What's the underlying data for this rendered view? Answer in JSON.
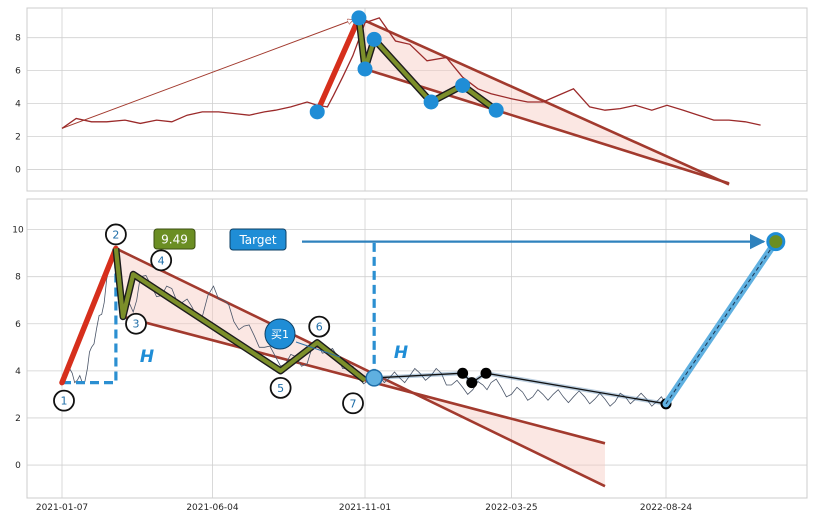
{
  "chart_data": [
    {
      "type": "line",
      "panel": "top",
      "title": "",
      "xlabel": "",
      "ylabel": "",
      "ylim": [
        -1.3,
        9.8
      ],
      "y_ticks": [
        0,
        2,
        4,
        6,
        8
      ],
      "grid": true,
      "price_series": {
        "color": "#9b2a2a",
        "x": [
          "2021-01-07",
          "2021-01-21",
          "2021-02-05",
          "2021-02-20",
          "2021-03-10",
          "2021-03-25",
          "2021-04-10",
          "2021-04-25",
          "2021-05-10",
          "2021-05-25",
          "2021-06-10",
          "2021-06-25",
          "2021-07-10",
          "2021-07-25",
          "2021-08-05",
          "2021-08-20",
          "2021-09-05",
          "2021-09-15",
          "2021-09-25",
          "2021-10-01",
          "2021-10-10",
          "2021-10-20",
          "2021-11-01",
          "2021-11-15",
          "2021-12-01",
          "2021-12-15",
          "2022-01-01",
          "2022-01-20",
          "2022-02-05",
          "2022-02-20",
          "2022-03-05",
          "2022-03-25",
          "2022-04-10",
          "2022-04-25",
          "2022-05-10",
          "2022-05-25",
          "2022-06-10",
          "2022-06-25",
          "2022-07-10",
          "2022-07-25",
          "2022-08-10",
          "2022-08-25",
          "2022-09-10",
          "2022-09-25",
          "2022-10-10",
          "2022-10-25",
          "2022-11-10",
          "2022-11-25"
        ],
        "y": [
          2.5,
          3.1,
          2.9,
          2.9,
          3.0,
          2.8,
          3.0,
          2.9,
          3.3,
          3.5,
          3.5,
          3.4,
          3.3,
          3.5,
          3.6,
          3.8,
          4.1,
          3.9,
          3.8,
          4.5,
          5.6,
          6.9,
          8.9,
          9.2,
          7.8,
          7.6,
          6.6,
          6.8,
          5.6,
          4.9,
          4.6,
          4.3,
          4.1,
          4.1,
          4.5,
          4.9,
          3.8,
          3.6,
          3.7,
          3.9,
          3.6,
          3.9,
          3.6,
          3.3,
          3.0,
          3.0,
          2.9,
          2.7
        ]
      },
      "waves": [
        {
          "x": "2021-09-15",
          "y": 3.5
        },
        {
          "x": "2021-10-26",
          "y": 9.2
        },
        {
          "x": "2021-11-01",
          "y": 6.1
        },
        {
          "x": "2021-11-10",
          "y": 7.9
        },
        {
          "x": "2022-01-05",
          "y": 4.1
        },
        {
          "x": "2022-02-05",
          "y": 5.1
        },
        {
          "x": "2022-03-10",
          "y": 3.6
        }
      ],
      "channel": {
        "upper": [
          {
            "x": "2021-10-26",
            "y": 9.2
          },
          {
            "x": "2022-10-25",
            "y": -0.9
          }
        ],
        "lower": [
          {
            "x": "2021-09-15",
            "y": 3.5
          },
          {
            "x": "2021-11-01",
            "y": 6.1
          }
        ]
      },
      "projection_arrow": {
        "from": {
          "x": "2021-01-07",
          "y": 2.5
        },
        "to": {
          "x": "2021-10-26",
          "y": 9.2
        }
      }
    },
    {
      "type": "line",
      "panel": "bottom",
      "title": "",
      "xlabel": "",
      "ylabel": "",
      "ylim": [
        -1.4,
        11.3
      ],
      "y_ticks": [
        0,
        2,
        4,
        6,
        8,
        10
      ],
      "x_ticks": [
        "2021-01-07",
        "2021-06-04",
        "2021-11-01",
        "2022-03-25",
        "2022-08-24"
      ],
      "grid": true,
      "price_series": {
        "color": "#4a5568",
        "x": [
          "2021-01-07",
          "2021-01-12",
          "2021-01-17",
          "2021-01-22",
          "2021-01-27",
          "2021-02-01",
          "2021-02-05",
          "2021-02-10",
          "2021-02-15",
          "2021-02-20",
          "2021-03-01",
          "2021-03-10",
          "2021-03-18",
          "2021-03-25",
          "2021-04-05",
          "2021-04-15",
          "2021-04-25",
          "2021-05-05",
          "2021-05-15",
          "2021-05-25",
          "2021-06-05",
          "2021-06-15",
          "2021-06-25",
          "2021-07-05",
          "2021-07-15",
          "2021-07-25",
          "2021-08-05",
          "2021-08-15",
          "2021-08-25",
          "2021-09-05",
          "2021-09-15",
          "2021-09-25",
          "2021-10-05",
          "2021-10-15",
          "2021-10-25",
          "2021-11-05",
          "2021-11-15",
          "2021-11-25",
          "2021-12-05",
          "2021-12-15",
          "2021-12-25",
          "2022-01-05",
          "2022-01-15",
          "2022-01-25",
          "2022-02-05",
          "2022-02-15",
          "2022-02-25",
          "2022-03-05",
          "2022-03-15",
          "2022-03-25",
          "2022-04-05",
          "2022-04-15",
          "2022-04-25",
          "2022-05-05",
          "2022-05-15",
          "2022-05-25",
          "2022-06-05",
          "2022-06-15",
          "2022-06-25",
          "2022-07-05",
          "2022-07-15",
          "2022-07-25",
          "2022-08-05",
          "2022-08-15",
          "2022-08-24"
        ],
        "y": [
          3.7,
          3.8,
          3.9,
          3.6,
          3.5,
          4.1,
          5.0,
          5.8,
          6.4,
          7.9,
          9.1,
          6.8,
          6.5,
          8.0,
          7.6,
          7.2,
          7.5,
          6.9,
          6.7,
          6.3,
          7.6,
          7.0,
          6.1,
          5.9,
          5.5,
          5.0,
          4.6,
          4.3,
          4.6,
          4.3,
          5.2,
          4.8,
          4.6,
          4.1,
          3.8,
          3.6,
          3.8,
          3.7,
          3.7,
          3.8,
          3.9,
          3.8,
          3.9,
          3.4,
          3.3,
          3.2,
          3.4,
          3.5,
          3.3,
          3.0,
          3.1,
          2.9,
          3.0,
          3.0,
          2.9,
          2.9,
          2.9,
          2.8,
          2.8,
          2.7,
          2.9,
          2.8,
          2.8,
          2.7,
          2.6
        ]
      },
      "waves": [
        {
          "x": "2021-01-07",
          "y": 3.5,
          "label": "1"
        },
        {
          "x": "2021-03-01",
          "y": 9.2,
          "label": "2"
        },
        {
          "x": "2021-03-08",
          "y": 6.3,
          "label": "3"
        },
        {
          "x": "2021-03-18",
          "y": 8.1,
          "label": "4"
        },
        {
          "x": "2021-08-10",
          "y": 4.0,
          "label": "5"
        },
        {
          "x": "2021-09-15",
          "y": 5.2,
          "label": "6"
        },
        {
          "x": "2021-11-01",
          "y": 3.6,
          "label": "7"
        }
      ],
      "channel": {
        "upper": [
          {
            "x": "2021-03-01",
            "y": 9.2
          },
          {
            "x": "2022-06-25",
            "y": -0.9
          }
        ],
        "lower": [
          {
            "x": "2021-01-07",
            "y": 3.5
          },
          {
            "x": "2021-11-01",
            "y": 3.6
          }
        ]
      },
      "target_label": "Target",
      "target_point": {
        "x": "2022-12-10",
        "y": 9.49
      },
      "price_label": "9.49",
      "buy_label": "买1",
      "height_label": "H",
      "black_points": [
        {
          "x": "2022-02-05",
          "y": 3.9
        },
        {
          "x": "2022-02-14",
          "y": 3.5
        },
        {
          "x": "2022-02-28",
          "y": 3.9
        },
        {
          "x": "2022-08-24",
          "y": 2.6
        }
      ],
      "projection_start": {
        "x": "2021-11-10",
        "y": 3.7
      },
      "projection_end": {
        "x": "2022-12-10",
        "y": 9.49
      },
      "colors": {
        "impulse": "#d62f1c",
        "wave": "#7c8f2a",
        "channel": "#a23a2e",
        "channel_fill": "#f7c9c0",
        "marker_blue": "#1f8dd6",
        "dash_blue": "#2b8fd1",
        "projection": "#5fb0e0",
        "arrow": "#2f82bd"
      }
    }
  ]
}
